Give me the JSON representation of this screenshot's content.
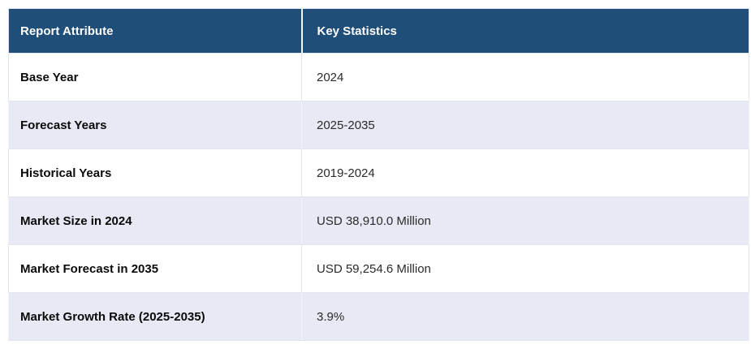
{
  "table": {
    "headers": {
      "attribute": "Report Attribute",
      "statistics": "Key Statistics"
    },
    "rows": [
      {
        "attribute": "Base Year",
        "value": "2024"
      },
      {
        "attribute": "Forecast Years",
        "value": "2025-2035"
      },
      {
        "attribute": "Historical Years",
        "value": "2019-2024"
      },
      {
        "attribute": "Market Size in 2024",
        "value": "USD 38,910.0 Million"
      },
      {
        "attribute": "Market Forecast in 2035",
        "value": "USD 59,254.6 Million"
      },
      {
        "attribute": "Market Growth Rate (2025-2035)",
        "value": "3.9%"
      }
    ]
  },
  "colors": {
    "header_bg": "#1f4e79",
    "header_text": "#ffffff",
    "row_bg": "#ffffff",
    "row_alt_bg": "#e7e9f4",
    "attribute_text": "#0a0a0a",
    "value_text": "#2b2b2b",
    "cell_border": "#e3e5ee"
  }
}
